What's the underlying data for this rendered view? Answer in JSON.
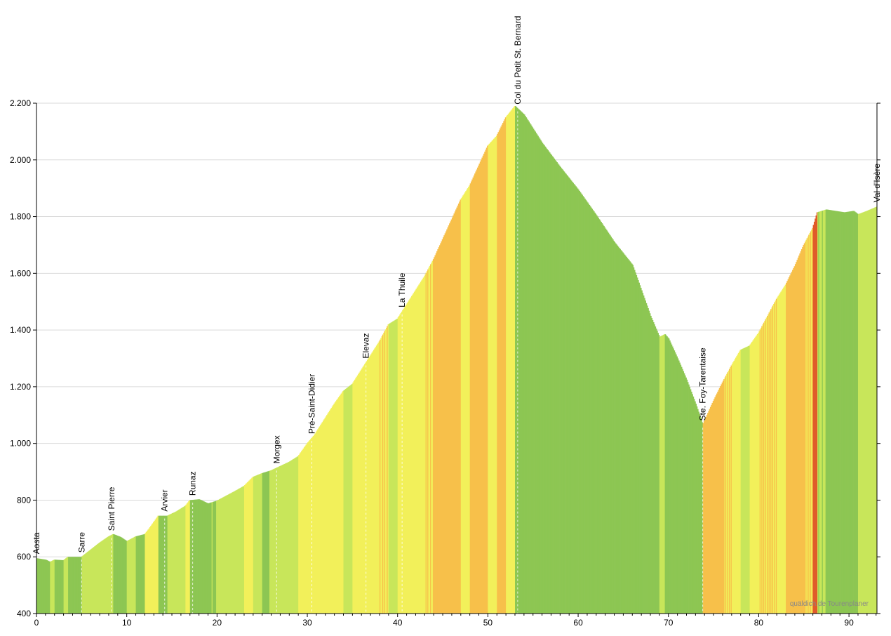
{
  "chart_data": {
    "type": "area",
    "title": "",
    "xlabel": "",
    "ylabel": "",
    "xlim": [
      0,
      93.1
    ],
    "ylim": [
      400,
      2200
    ],
    "x_ticks": [
      0,
      10,
      20,
      30,
      40,
      50,
      60,
      70,
      80,
      90
    ],
    "x_tick_labels": [
      "0",
      "10",
      "20",
      "30",
      "40",
      "50",
      "60",
      "70",
      "80",
      "90"
    ],
    "y_ticks": [
      400,
      600,
      800,
      1000,
      1200,
      1400,
      1600,
      1800,
      2000,
      2200
    ],
    "y_tick_labels": [
      "400",
      "600",
      "800",
      "1.000",
      "1.200",
      "1.400",
      "1.600",
      "1.800",
      "2.000",
      "2.200"
    ],
    "grid": "horizontal",
    "credit": "quäldich.de Tourenplaner",
    "gradient_colors": {
      "flat": "#8dc653",
      "easy": "#c8e65a",
      "moderate": "#f2f05a",
      "steep": "#f7c04a",
      "hard": "#f08a3c",
      "very_hard": "#e05a2a",
      "extreme": "#b82a1a"
    },
    "profile": [
      {
        "x": 0,
        "y": 595
      },
      {
        "x": 1,
        "y": 590
      },
      {
        "x": 1.5,
        "y": 582
      },
      {
        "x": 2,
        "y": 590
      },
      {
        "x": 3,
        "y": 588
      },
      {
        "x": 3.5,
        "y": 600
      },
      {
        "x": 5,
        "y": 600
      },
      {
        "x": 6,
        "y": 625
      },
      {
        "x": 7,
        "y": 650
      },
      {
        "x": 8,
        "y": 672
      },
      {
        "x": 8.5,
        "y": 680
      },
      {
        "x": 9.3,
        "y": 670
      },
      {
        "x": 10,
        "y": 655
      },
      {
        "x": 11,
        "y": 672
      },
      {
        "x": 12,
        "y": 680
      },
      {
        "x": 12.5,
        "y": 700
      },
      {
        "x": 13.5,
        "y": 745
      },
      {
        "x": 14.5,
        "y": 745
      },
      {
        "x": 15.5,
        "y": 760
      },
      {
        "x": 16.5,
        "y": 780
      },
      {
        "x": 17,
        "y": 800
      },
      {
        "x": 18,
        "y": 803
      },
      {
        "x": 19,
        "y": 788
      },
      {
        "x": 20,
        "y": 798
      },
      {
        "x": 21,
        "y": 815
      },
      {
        "x": 22,
        "y": 832
      },
      {
        "x": 23,
        "y": 850
      },
      {
        "x": 24,
        "y": 882
      },
      {
        "x": 25,
        "y": 895
      },
      {
        "x": 26,
        "y": 905
      },
      {
        "x": 27,
        "y": 920
      },
      {
        "x": 28,
        "y": 935
      },
      {
        "x": 29,
        "y": 955
      },
      {
        "x": 30,
        "y": 1000
      },
      {
        "x": 30.8,
        "y": 1030
      },
      {
        "x": 32,
        "y": 1090
      },
      {
        "x": 33,
        "y": 1140
      },
      {
        "x": 34,
        "y": 1185
      },
      {
        "x": 35,
        "y": 1210
      },
      {
        "x": 36,
        "y": 1260
      },
      {
        "x": 37,
        "y": 1310
      },
      {
        "x": 38,
        "y": 1360
      },
      {
        "x": 39,
        "y": 1420
      },
      {
        "x": 40,
        "y": 1440
      },
      {
        "x": 41,
        "y": 1490
      },
      {
        "x": 42,
        "y": 1540
      },
      {
        "x": 43,
        "y": 1590
      },
      {
        "x": 44,
        "y": 1650
      },
      {
        "x": 45,
        "y": 1720
      },
      {
        "x": 46,
        "y": 1790
      },
      {
        "x": 47,
        "y": 1860
      },
      {
        "x": 48,
        "y": 1910
      },
      {
        "x": 49,
        "y": 1980
      },
      {
        "x": 50,
        "y": 2050
      },
      {
        "x": 51,
        "y": 2085
      },
      {
        "x": 52,
        "y": 2150
      },
      {
        "x": 53,
        "y": 2190
      },
      {
        "x": 54,
        "y": 2160
      },
      {
        "x": 55,
        "y": 2110
      },
      {
        "x": 56,
        "y": 2060
      },
      {
        "x": 58,
        "y": 1975
      },
      {
        "x": 60,
        "y": 1895
      },
      {
        "x": 62,
        "y": 1805
      },
      {
        "x": 64,
        "y": 1710
      },
      {
        "x": 66,
        "y": 1630
      },
      {
        "x": 67,
        "y": 1540
      },
      {
        "x": 68,
        "y": 1450
      },
      {
        "x": 69,
        "y": 1375
      },
      {
        "x": 69.6,
        "y": 1385
      },
      {
        "x": 70,
        "y": 1370
      },
      {
        "x": 71,
        "y": 1300
      },
      {
        "x": 72,
        "y": 1225
      },
      {
        "x": 73,
        "y": 1140
      },
      {
        "x": 73.8,
        "y": 1065
      },
      {
        "x": 75,
        "y": 1150
      },
      {
        "x": 76,
        "y": 1215
      },
      {
        "x": 77,
        "y": 1275
      },
      {
        "x": 78,
        "y": 1330
      },
      {
        "x": 79,
        "y": 1345
      },
      {
        "x": 80,
        "y": 1390
      },
      {
        "x": 81,
        "y": 1450
      },
      {
        "x": 82,
        "y": 1510
      },
      {
        "x": 83,
        "y": 1560
      },
      {
        "x": 84,
        "y": 1625
      },
      {
        "x": 85,
        "y": 1700
      },
      {
        "x": 86,
        "y": 1760
      },
      {
        "x": 86.5,
        "y": 1815
      },
      {
        "x": 87.5,
        "y": 1825
      },
      {
        "x": 88.5,
        "y": 1820
      },
      {
        "x": 89.5,
        "y": 1815
      },
      {
        "x": 90.5,
        "y": 1820
      },
      {
        "x": 91,
        "y": 1808
      },
      {
        "x": 92,
        "y": 1820
      },
      {
        "x": 93.1,
        "y": 1835
      }
    ],
    "places": [
      {
        "name": "Aosta",
        "x": 0
      },
      {
        "name": "Sarre",
        "x": 5
      },
      {
        "name": "Saint Pierre",
        "x": 8.3
      },
      {
        "name": "Arvier",
        "x": 14.2
      },
      {
        "name": "Runaz",
        "x": 17.3
      },
      {
        "name": "Morgex",
        "x": 26.6
      },
      {
        "name": "Pré-Saint-Didier",
        "x": 30.5
      },
      {
        "name": "Elevaz",
        "x": 36.5
      },
      {
        "name": "La Thuile",
        "x": 40.5
      },
      {
        "name": "Col du Petit St. Bernard",
        "x": 53.3
      },
      {
        "name": "Ste. Foy-Tarentaise",
        "x": 73.8
      },
      {
        "name": "Val d'Isère",
        "x": 93.1
      }
    ]
  }
}
